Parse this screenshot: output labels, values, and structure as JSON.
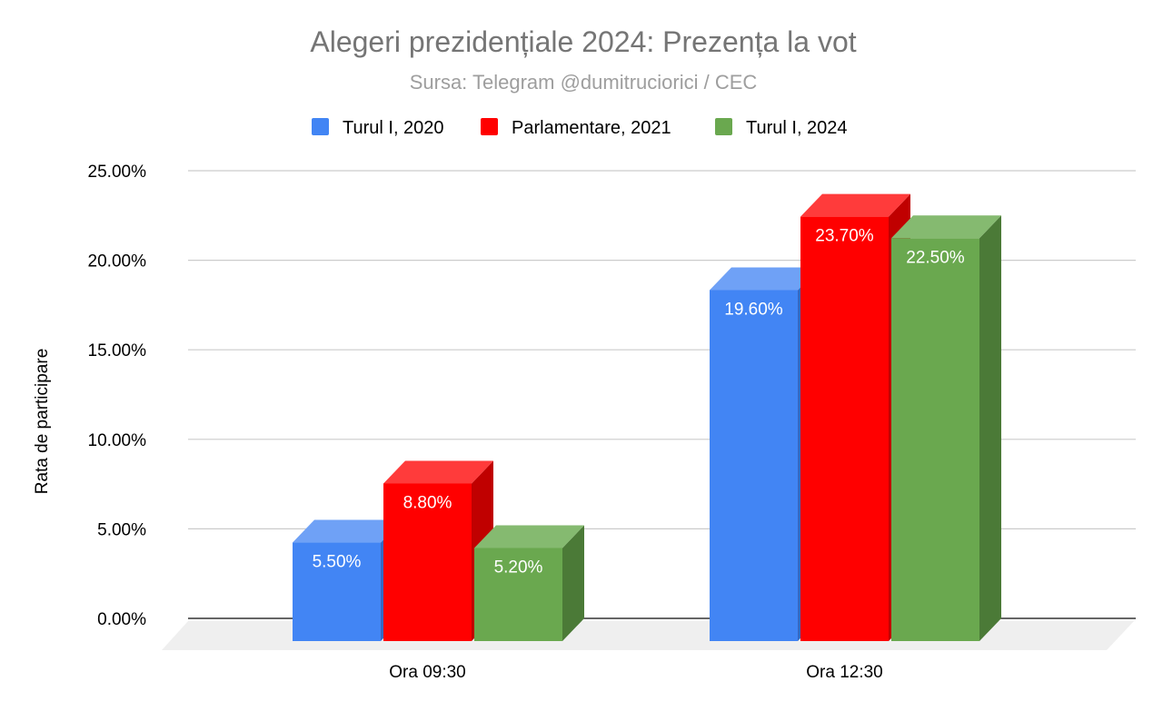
{
  "chart_data": {
    "type": "bar",
    "title": "Alegeri prezidențiale 2024: Prezența la vot",
    "subtitle": "Sursa: Telegram @dumitruciorici / CEC",
    "ylabel": "Rata de participare",
    "xlabel": "",
    "ylim": [
      0,
      25
    ],
    "yticks": [
      "0.00%",
      "5.00%",
      "10.00%",
      "15.00%",
      "20.00%",
      "25.00%"
    ],
    "categories": [
      "Ora 09:30",
      "Ora 12:30"
    ],
    "series": [
      {
        "name": "Turul I, 2020",
        "values": [
          5.5,
          19.6
        ],
        "labels": [
          "5.50%",
          "19.60%"
        ],
        "color": "#4285F4",
        "top_color": "#6fa1f6",
        "side_color": "#3569c3"
      },
      {
        "name": "Parlamentare, 2021",
        "values": [
          8.8,
          23.7
        ],
        "labels": [
          "8.80%",
          "23.70%"
        ],
        "color": "#FF0000",
        "top_color": "#ff3b3b",
        "side_color": "#c00000"
      },
      {
        "name": "Turul I, 2024",
        "values": [
          5.2,
          22.5
        ],
        "labels": [
          "5.20%",
          "22.50%"
        ],
        "color": "#6AA84F",
        "top_color": "#85ba70",
        "side_color": "#4b7a37"
      }
    ],
    "legend_position": "top",
    "grid": true,
    "style": "3d"
  }
}
